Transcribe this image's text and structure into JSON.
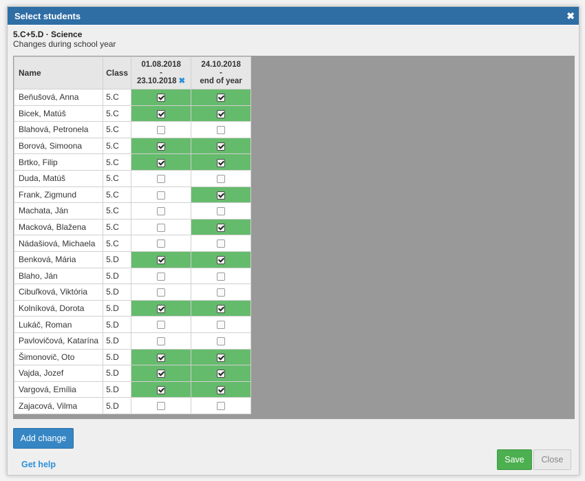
{
  "dialog": {
    "title": "Select students",
    "context": "5.C+5.D · Science",
    "subtitle": "Changes during school year"
  },
  "table": {
    "col_name": "Name",
    "col_class": "Class",
    "periods": [
      {
        "start": "01.08.2018",
        "sep": "-",
        "end": "23.10.2018",
        "removable": true
      },
      {
        "start": "24.10.2018",
        "sep": "-",
        "end": "end of year",
        "removable": false
      }
    ],
    "rows": [
      {
        "name": "Beňušová, Anna",
        "class": "5.C",
        "p1": true,
        "p2": true
      },
      {
        "name": "Bicek, Matúš",
        "class": "5.C",
        "p1": true,
        "p2": true
      },
      {
        "name": "Blahová, Petronela",
        "class": "5.C",
        "p1": false,
        "p2": false
      },
      {
        "name": "Borová, Simoona",
        "class": "5.C",
        "p1": true,
        "p2": true
      },
      {
        "name": "Brtko, Filip",
        "class": "5.C",
        "p1": true,
        "p2": true
      },
      {
        "name": "Duda, Matúš",
        "class": "5.C",
        "p1": false,
        "p2": false
      },
      {
        "name": "Frank, Zigmund",
        "class": "5.C",
        "p1": false,
        "p2": true
      },
      {
        "name": "Machata, Ján",
        "class": "5.C",
        "p1": false,
        "p2": false
      },
      {
        "name": "Macková, Blažena",
        "class": "5.C",
        "p1": false,
        "p2": true
      },
      {
        "name": "Nádašiová, Michaela",
        "class": "5.C",
        "p1": false,
        "p2": false
      },
      {
        "name": "Benková, Mária",
        "class": "5.D",
        "p1": true,
        "p2": true
      },
      {
        "name": "Blaho, Ján",
        "class": "5.D",
        "p1": false,
        "p2": false
      },
      {
        "name": "Cibuľková, Viktória",
        "class": "5.D",
        "p1": false,
        "p2": false
      },
      {
        "name": "Kolníková, Dorota",
        "class": "5.D",
        "p1": true,
        "p2": true
      },
      {
        "name": "Lukáč, Roman",
        "class": "5.D",
        "p1": false,
        "p2": false
      },
      {
        "name": "Pavlovičová, Katarína",
        "class": "5.D",
        "p1": false,
        "p2": false
      },
      {
        "name": "Šimonovič, Oto",
        "class": "5.D",
        "p1": true,
        "p2": true
      },
      {
        "name": "Vajda, Jozef",
        "class": "5.D",
        "p1": true,
        "p2": true
      },
      {
        "name": "Vargová, Emília",
        "class": "5.D",
        "p1": true,
        "p2": true
      },
      {
        "name": "Zajacová, Vilma",
        "class": "5.D",
        "p1": false,
        "p2": false
      }
    ]
  },
  "buttons": {
    "add_change": "Add change",
    "get_help": "Get help",
    "save": "Save",
    "close": "Close"
  },
  "icons": {
    "dialog_close": "close-icon",
    "period_remove": "remove-icon"
  },
  "colors": {
    "titlebar": "#2f6ea5",
    "selected_cell": "#65bb6c",
    "save_button": "#4caf50",
    "primary_button": "#3686c4",
    "link": "#2d8fd8"
  }
}
